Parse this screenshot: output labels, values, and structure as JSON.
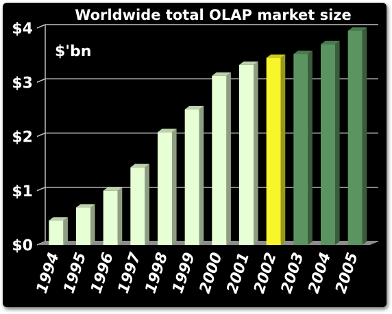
{
  "chart_data": {
    "type": "bar",
    "title": "Worldwide total OLAP market size",
    "unit_label": "$'bn",
    "categories": [
      "1994",
      "1995",
      "1996",
      "1997",
      "1998",
      "1999",
      "2000",
      "2001",
      "2002",
      "2003",
      "2004",
      "2005"
    ],
    "values": [
      0.45,
      0.69,
      1.0,
      1.43,
      2.08,
      2.5,
      3.12,
      3.32,
      3.45,
      3.52,
      3.7,
      3.95
    ],
    "ylim": [
      0,
      4
    ],
    "yticks": [
      0,
      1,
      2,
      3,
      4
    ],
    "ytick_labels": [
      "$0",
      "$1",
      "$2",
      "$3",
      "$4"
    ],
    "grid": true,
    "colors": {
      "actual": "#e6ffd4",
      "current": "#f7f52c",
      "forecast": "#5b9460",
      "background": "#000000",
      "gridline": "#bfbfbf"
    },
    "bar_groups": [
      "actual",
      "actual",
      "actual",
      "actual",
      "actual",
      "actual",
      "actual",
      "actual",
      "current",
      "forecast",
      "forecast",
      "forecast"
    ]
  }
}
